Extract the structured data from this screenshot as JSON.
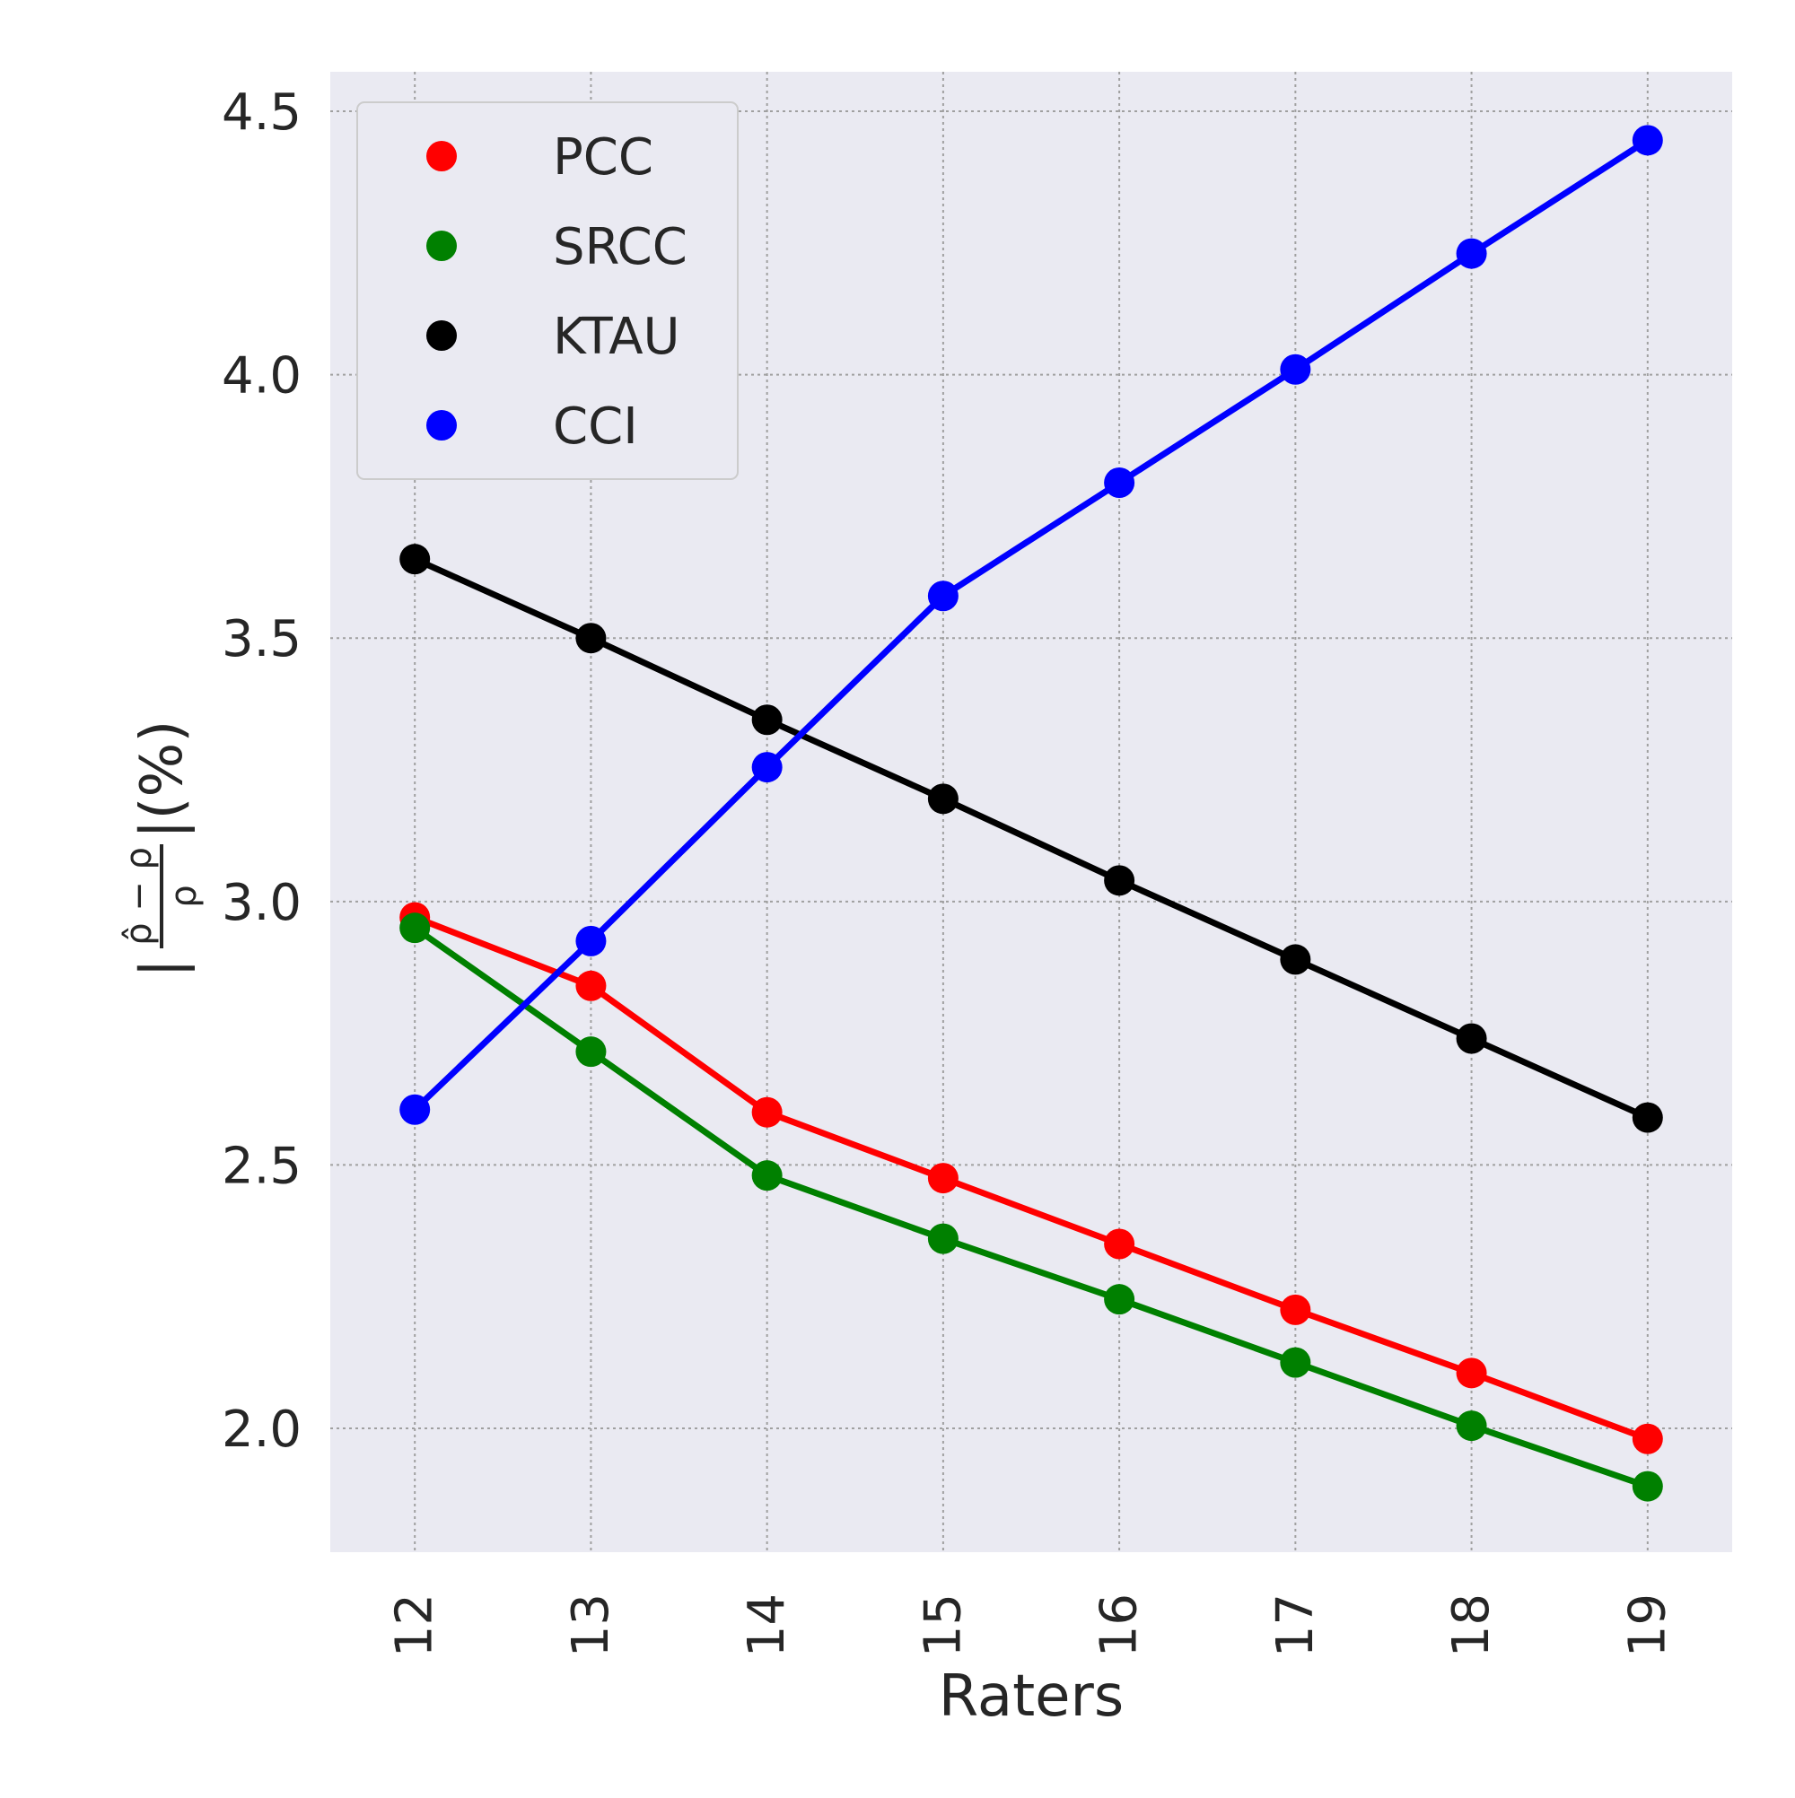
{
  "chart_data": {
    "type": "line",
    "xlabel": "Raters",
    "ylabel": {
      "prefix": "|",
      "numerator": "ρ̂ − ρ",
      "denominator": "ρ",
      "suffix": "|(%)"
    },
    "categories": [
      "12",
      "13",
      "14",
      "15",
      "16",
      "17",
      "18",
      "19"
    ],
    "x": [
      12,
      13,
      14,
      15,
      16,
      17,
      18,
      19
    ],
    "yticks": [
      "2.0",
      "2.5",
      "3.0",
      "3.5",
      "4.0",
      "4.5"
    ],
    "ylim": [
      1.765,
      4.575
    ],
    "grid": true,
    "legend_position": "top-left",
    "series": [
      {
        "name": "PCC",
        "color": "#ff0000",
        "values": [
          2.97,
          2.84,
          2.6,
          2.475,
          2.35,
          2.225,
          2.105,
          1.98
        ]
      },
      {
        "name": "SRCC",
        "color": "#008000",
        "values": [
          2.95,
          2.715,
          2.48,
          2.36,
          2.245,
          2.125,
          2.005,
          1.89
        ]
      },
      {
        "name": "KTAU",
        "color": "#000000",
        "values": [
          3.65,
          3.5,
          3.345,
          3.195,
          3.04,
          2.89,
          2.74,
          2.59
        ]
      },
      {
        "name": "CCI",
        "color": "#0000ff",
        "values": [
          2.605,
          2.925,
          3.255,
          3.58,
          3.795,
          4.01,
          4.23,
          4.445
        ]
      }
    ]
  }
}
